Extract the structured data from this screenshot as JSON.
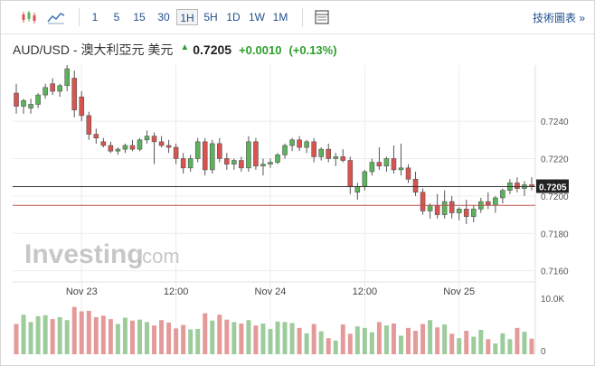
{
  "toolbar": {
    "candle_icon": "candlestick-icon",
    "area_icon": "area-chart-icon",
    "timeframes": [
      "1",
      "5",
      "15",
      "30",
      "1H",
      "5H",
      "1D",
      "1W",
      "1M"
    ],
    "active_timeframe": "1H",
    "settings_icon": "table-icon",
    "tech_link": "技術圖表 »"
  },
  "header": {
    "pair": "AUD/USD - 澳大利亞元 美元",
    "price": "0.7205",
    "change": "+0.0010",
    "change_pct": "(+0.13%)"
  },
  "watermark": {
    "brand": "Investing",
    "suffix": ".com"
  },
  "colors": {
    "up": "#5bb35b",
    "down": "#d9534f",
    "vol_up": "#9ccc9c",
    "vol_down": "#e59a9a"
  },
  "chart_data": {
    "type": "candlestick",
    "y_ticks": [
      "0.7240",
      "0.7220",
      "0.7200",
      "0.7180",
      "0.7160"
    ],
    "y_tick_values": [
      0.724,
      0.722,
      0.72,
      0.718,
      0.716
    ],
    "ylim": [
      0.7155,
      0.727
    ],
    "x_labels": [
      "Nov 23",
      "12:00",
      "Nov 24",
      "12:00",
      "Nov 25"
    ],
    "x_label_index": [
      9,
      22,
      35,
      48,
      61
    ],
    "last_price_label": "0.7205",
    "last_price": 0.7205,
    "reference_line": 0.7195,
    "volume_ticks": [
      "10.0K",
      "0"
    ],
    "volume_max": 10000,
    "candles": [
      [
        0.7255,
        0.726,
        0.7244,
        0.7248
      ],
      [
        0.7248,
        0.7252,
        0.7244,
        0.7251
      ],
      [
        0.7247,
        0.7252,
        0.7244,
        0.7249
      ],
      [
        0.7249,
        0.7255,
        0.7247,
        0.7254
      ],
      [
        0.7254,
        0.726,
        0.7252,
        0.7258
      ],
      [
        0.726,
        0.7263,
        0.7254,
        0.7256
      ],
      [
        0.7256,
        0.726,
        0.7253,
        0.7259
      ],
      [
        0.7259,
        0.727,
        0.7256,
        0.7268
      ],
      [
        0.7263,
        0.7267,
        0.7242,
        0.7246
      ],
      [
        0.7253,
        0.7256,
        0.724,
        0.7243
      ],
      [
        0.7243,
        0.7245,
        0.723,
        0.7233
      ],
      [
        0.7233,
        0.7236,
        0.7228,
        0.7231
      ],
      [
        0.7229,
        0.7231,
        0.7226,
        0.7227
      ],
      [
        0.7227,
        0.7229,
        0.7223,
        0.7224
      ],
      [
        0.7224,
        0.7226,
        0.7222,
        0.7225
      ],
      [
        0.7225,
        0.7228,
        0.7223,
        0.7227
      ],
      [
        0.7227,
        0.723,
        0.7224,
        0.7225
      ],
      [
        0.7225,
        0.7231,
        0.7224,
        0.723
      ],
      [
        0.723,
        0.7235,
        0.7228,
        0.7232
      ],
      [
        0.7232,
        0.7234,
        0.7217,
        0.7229
      ],
      [
        0.7229,
        0.7232,
        0.7226,
        0.7227
      ],
      [
        0.7227,
        0.723,
        0.7223,
        0.7226
      ],
      [
        0.7226,
        0.7228,
        0.7217,
        0.722
      ],
      [
        0.722,
        0.7223,
        0.7212,
        0.7215
      ],
      [
        0.7215,
        0.7222,
        0.7213,
        0.722
      ],
      [
        0.722,
        0.7231,
        0.7218,
        0.7229
      ],
      [
        0.7229,
        0.7231,
        0.7211,
        0.7214
      ],
      [
        0.7214,
        0.723,
        0.7212,
        0.7228
      ],
      [
        0.7228,
        0.7231,
        0.7218,
        0.722
      ],
      [
        0.722,
        0.7223,
        0.7214,
        0.7217
      ],
      [
        0.7217,
        0.722,
        0.7214,
        0.7219
      ],
      [
        0.7219,
        0.7221,
        0.7213,
        0.7215
      ],
      [
        0.7215,
        0.7232,
        0.7213,
        0.7229
      ],
      [
        0.7229,
        0.7231,
        0.7214,
        0.7216
      ],
      [
        0.7216,
        0.722,
        0.7211,
        0.7217
      ],
      [
        0.7217,
        0.722,
        0.7215,
        0.7218
      ],
      [
        0.7218,
        0.7223,
        0.7217,
        0.7222
      ],
      [
        0.7222,
        0.7228,
        0.722,
        0.7227
      ],
      [
        0.7227,
        0.7231,
        0.7224,
        0.723
      ],
      [
        0.723,
        0.7232,
        0.7224,
        0.7226
      ],
      [
        0.7226,
        0.723,
        0.7223,
        0.7229
      ],
      [
        0.7229,
        0.7231,
        0.7218,
        0.7221
      ],
      [
        0.7221,
        0.7226,
        0.7219,
        0.7225
      ],
      [
        0.7225,
        0.7228,
        0.7218,
        0.722
      ],
      [
        0.722,
        0.7223,
        0.7216,
        0.7221
      ],
      [
        0.7221,
        0.7225,
        0.7218,
        0.7219
      ],
      [
        0.7219,
        0.7221,
        0.7201,
        0.7205
      ],
      [
        0.7202,
        0.7207,
        0.7198,
        0.7205
      ],
      [
        0.7205,
        0.7214,
        0.7203,
        0.7213
      ],
      [
        0.7213,
        0.722,
        0.7211,
        0.7218
      ],
      [
        0.7218,
        0.7226,
        0.7214,
        0.7216
      ],
      [
        0.7216,
        0.7221,
        0.7213,
        0.722
      ],
      [
        0.722,
        0.7227,
        0.7212,
        0.7214
      ],
      [
        0.7214,
        0.7228,
        0.7211,
        0.7215
      ],
      [
        0.7215,
        0.7217,
        0.7207,
        0.7209
      ],
      [
        0.7209,
        0.7213,
        0.72,
        0.7202
      ],
      [
        0.7202,
        0.7204,
        0.719,
        0.7192
      ],
      [
        0.7192,
        0.7196,
        0.7188,
        0.7195
      ],
      [
        0.7195,
        0.7201,
        0.7188,
        0.719
      ],
      [
        0.719,
        0.7203,
        0.7188,
        0.7197
      ],
      [
        0.7197,
        0.72,
        0.7188,
        0.7191
      ],
      [
        0.7191,
        0.7194,
        0.7187,
        0.7193
      ],
      [
        0.7193,
        0.7198,
        0.7185,
        0.7189
      ],
      [
        0.7189,
        0.7195,
        0.7186,
        0.7193
      ],
      [
        0.7193,
        0.7199,
        0.7191,
        0.7197
      ],
      [
        0.7197,
        0.7202,
        0.7193,
        0.7195
      ],
      [
        0.7195,
        0.72,
        0.7191,
        0.7199
      ],
      [
        0.7199,
        0.7204,
        0.7196,
        0.7203
      ],
      [
        0.7203,
        0.7209,
        0.7201,
        0.7207
      ],
      [
        0.7207,
        0.721,
        0.7202,
        0.7204
      ],
      [
        0.7204,
        0.7208,
        0.72,
        0.7206
      ],
      [
        0.7206,
        0.721,
        0.7203,
        0.7205
      ]
    ],
    "volumes": [
      6200,
      8100,
      6600,
      7800,
      8000,
      7200,
      7600,
      7000,
      9700,
      8800,
      8900,
      7600,
      7900,
      7200,
      6200,
      7500,
      6900,
      7100,
      6600,
      5900,
      7000,
      6500,
      5300,
      6000,
      5100,
      5200,
      8400,
      6900,
      8100,
      7100,
      6600,
      6300,
      7000,
      5900,
      6300,
      5200,
      6700,
      6600,
      6400,
      5400,
      4300,
      6200,
      4700,
      3300,
      2800,
      6100,
      4200,
      5700,
      5400,
      4500,
      6600,
      5900,
      6300,
      3800,
      5400,
      4800,
      6200,
      7000,
      5500,
      6100,
      4200,
      3300,
      4800,
      3600,
      5000,
      3100,
      2200,
      4300,
      3100,
      5400,
      4600,
      3200
    ]
  }
}
